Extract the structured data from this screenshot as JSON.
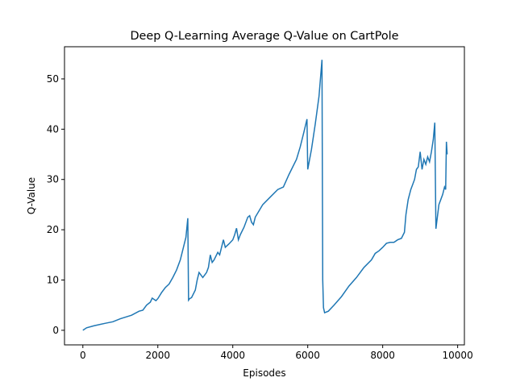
{
  "chart_data": {
    "type": "line",
    "title": "Deep Q-Learning Average Q-Value on CartPole",
    "xlabel": "Episodes",
    "ylabel": "Q-Value",
    "xlim": [
      -490,
      10180
    ],
    "ylim": [
      -2.9,
      56.4
    ],
    "xticks": [
      0,
      2000,
      4000,
      6000,
      8000,
      10000
    ],
    "yticks": [
      0,
      10,
      20,
      30,
      40,
      50
    ],
    "series": [
      {
        "color": "#1f77b4",
        "x": [
          0,
          100,
          300,
          600,
          800,
          1000,
          1300,
          1500,
          1600,
          1700,
          1800,
          1850,
          1950,
          2000,
          2100,
          2200,
          2300,
          2400,
          2500,
          2600,
          2650,
          2700,
          2750,
          2800,
          2820,
          2850,
          2900,
          3000,
          3050,
          3100,
          3200,
          3300,
          3350,
          3400,
          3450,
          3500,
          3600,
          3650,
          3700,
          3750,
          3800,
          3900,
          4000,
          4050,
          4100,
          4150,
          4200,
          4300,
          4400,
          4450,
          4500,
          4550,
          4600,
          4800,
          5000,
          5200,
          5350,
          5500,
          5700,
          5800,
          5900,
          5980,
          6000,
          6100,
          6200,
          6300,
          6380,
          6400,
          6420,
          6450,
          6550,
          6700,
          6900,
          7100,
          7300,
          7500,
          7700,
          7800,
          7900,
          8000,
          8100,
          8200,
          8300,
          8400,
          8500,
          8580,
          8620,
          8680,
          8750,
          8800,
          8850,
          8900,
          8950,
          9000,
          9050,
          9100,
          9150,
          9200,
          9250,
          9300,
          9350,
          9390,
          9420,
          9450,
          9500,
          9550,
          9600,
          9650,
          9680,
          9700,
          9720
        ],
        "values": [
          0,
          0.5,
          0.9,
          1.4,
          1.7,
          2.3,
          3.0,
          3.8,
          4.0,
          5.0,
          5.6,
          6.4,
          5.9,
          6.3,
          7.5,
          8.5,
          9.2,
          10.5,
          12,
          14,
          15.5,
          17,
          18.5,
          22.3,
          6.0,
          6.3,
          6.5,
          8,
          10,
          11.5,
          10.5,
          11.5,
          12.5,
          15,
          13.5,
          14,
          15.5,
          15,
          16.5,
          18,
          16.5,
          17.2,
          18,
          19,
          20.3,
          18,
          19,
          20.5,
          22.5,
          22.8,
          21.5,
          21,
          22.5,
          25,
          26.5,
          28,
          28.5,
          31,
          34,
          36.5,
          39.5,
          42,
          32,
          36,
          41,
          46.5,
          53.8,
          10,
          4.5,
          3.5,
          3.8,
          5,
          6.7,
          8.8,
          10.5,
          12.5,
          14,
          15.3,
          15.8,
          16.5,
          17.3,
          17.5,
          17.5,
          18,
          18.3,
          19.5,
          23,
          26,
          28,
          29,
          30,
          32,
          32.5,
          35.5,
          32,
          34,
          33,
          34.5,
          33.5,
          35.5,
          38,
          41.3,
          20.2,
          22,
          25,
          26,
          27,
          28.5,
          28,
          37.5,
          35
        ]
      }
    ]
  }
}
